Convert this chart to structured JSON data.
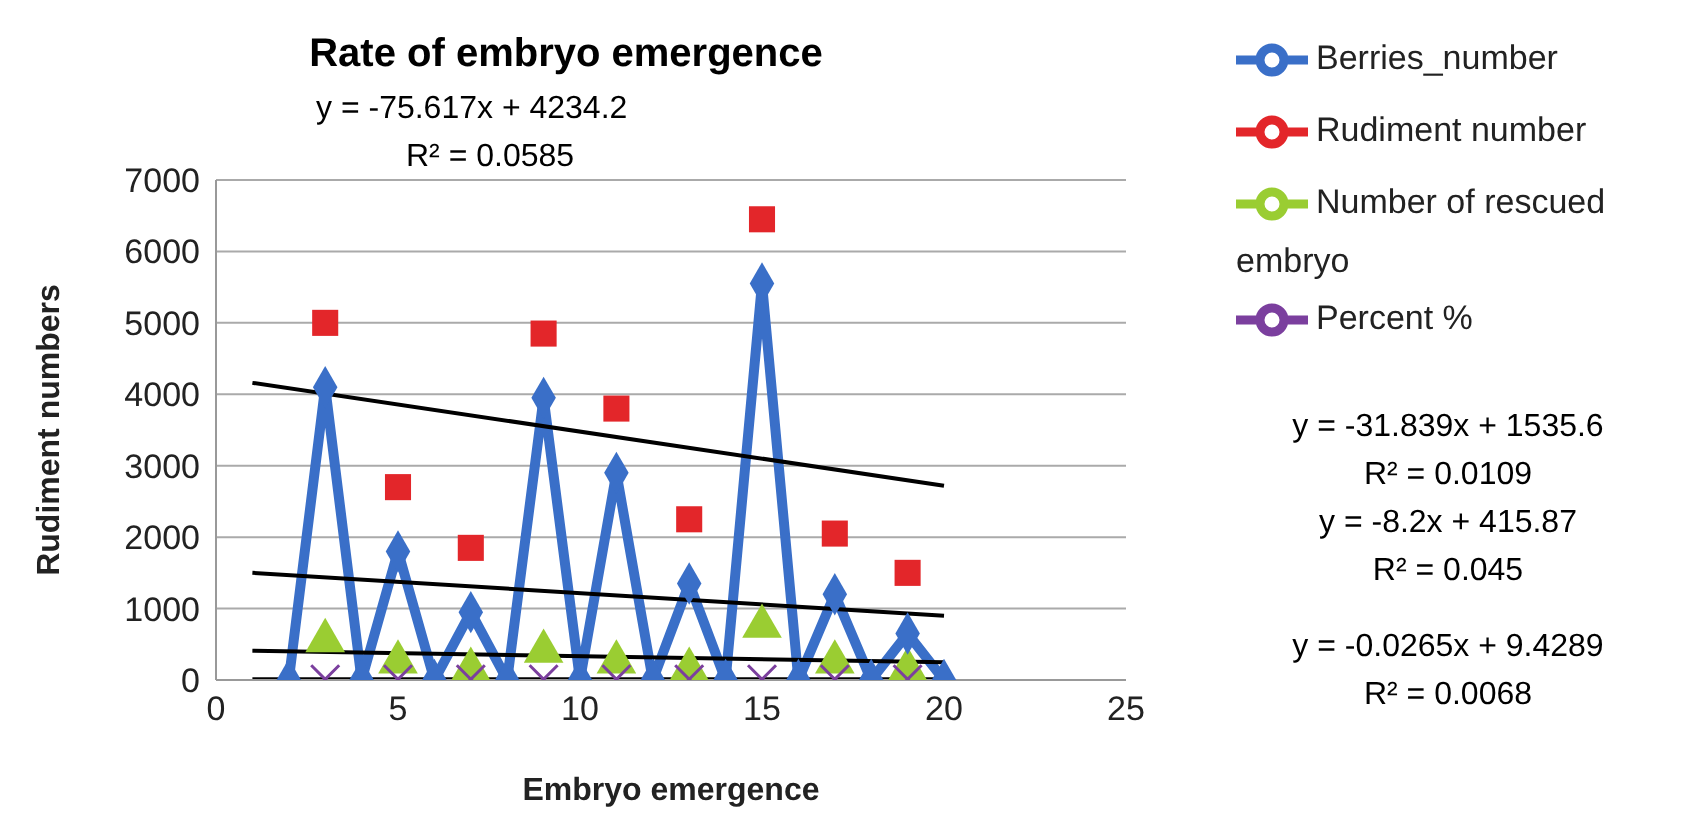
{
  "chart_data": {
    "type": "line",
    "title": "Rate of embryo emergence",
    "xlabel": "Embryo emergence",
    "ylabel": "Rudiment numbers",
    "xlim": [
      0,
      25
    ],
    "xticks": [
      0,
      5,
      10,
      15,
      20,
      25
    ],
    "ylim": [
      0,
      7000
    ],
    "yticks": [
      0,
      1000,
      2000,
      3000,
      4000,
      5000,
      6000,
      7000
    ],
    "grid": "y",
    "legend": "right",
    "annotations": [
      "y = -75.617x + 4234.2",
      "R² = 0.0585",
      "y = -31.839x + 1535.6",
      "R² = 0.0109",
      "y = -8.2x + 415.87",
      "R² = 0.045",
      "y = -0.0265x + 9.4289",
      "R² = 0.0068"
    ],
    "series": [
      {
        "name": "Berries_number",
        "marker": "diamond",
        "color": "#3a6fc8",
        "x": [
          2,
          3,
          4,
          5,
          6,
          7,
          8,
          9,
          10,
          11,
          12,
          13,
          14,
          15,
          16,
          17,
          18,
          19,
          20
        ],
        "values": [
          0,
          4100,
          0,
          1800,
          0,
          950,
          0,
          3950,
          0,
          2900,
          0,
          1350,
          0,
          5550,
          0,
          1200,
          0,
          650,
          0
        ]
      },
      {
        "name": "Rudiment number",
        "type": "scatter",
        "marker": "square",
        "color": "#e3262a",
        "x": [
          3,
          5,
          7,
          9,
          11,
          13,
          15,
          17,
          19
        ],
        "values": [
          5000,
          2700,
          1850,
          4850,
          3800,
          2250,
          6450,
          2050,
          1500
        ]
      },
      {
        "name": "Number of rescued embryo",
        "type": "scatter",
        "marker": "triangle",
        "color": "#9acd32",
        "x": [
          3,
          5,
          7,
          9,
          11,
          13,
          15,
          17,
          19
        ],
        "values": [
          550,
          250,
          150,
          400,
          250,
          150,
          750,
          250,
          150
        ]
      },
      {
        "name": "Percent                %",
        "type": "scatter",
        "marker": "cross",
        "color": "#7b3f9e",
        "x": [
          3,
          5,
          7,
          9,
          11,
          13,
          15,
          17,
          19
        ],
        "values": [
          10,
          10,
          10,
          10,
          10,
          10,
          10,
          10,
          10
        ]
      },
      {
        "marker": "none",
        "color": "#000000",
        "x": [
          1,
          20
        ],
        "values": [
          4160,
          2720
        ]
      },
      {
        "marker": "none",
        "color": "#000000",
        "x": [
          1,
          20
        ],
        "values": [
          1500,
          900
        ]
      },
      {
        "marker": "none",
        "color": "#000000",
        "x": [
          1,
          20
        ],
        "values": [
          410,
          250
        ]
      },
      {
        "marker": "none",
        "color": "#000000",
        "x": [
          1,
          20
        ],
        "values": [
          10,
          10
        ]
      }
    ]
  }
}
